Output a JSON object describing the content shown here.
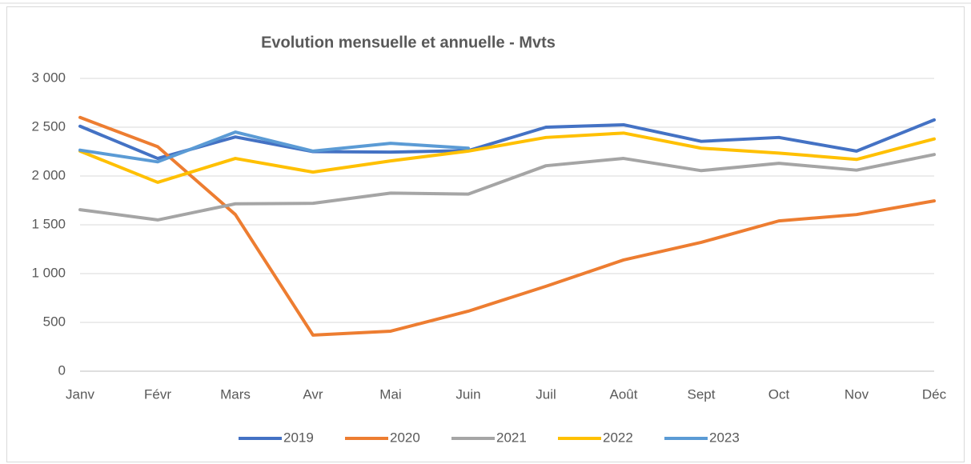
{
  "chart_data": {
    "type": "line",
    "title": "Evolution mensuelle et annuelle - Mvts",
    "categories": [
      "Janv",
      "Févr",
      "Mars",
      "Avr",
      "Mai",
      "Juin",
      "Juil",
      "Août",
      "Sept",
      "Oct",
      "Nov",
      "Déc"
    ],
    "series": [
      {
        "name": "2019",
        "color": "#4472c4",
        "values": [
          2510,
          2180,
          2400,
          2250,
          2245,
          2260,
          2500,
          2525,
          2355,
          2395,
          2255,
          2575
        ]
      },
      {
        "name": "2020",
        "color": "#ed7d31",
        "values": [
          2600,
          2300,
          1605,
          370,
          410,
          615,
          870,
          1140,
          1320,
          1540,
          1605,
          1745
        ]
      },
      {
        "name": "2021",
        "color": "#a5a5a5",
        "values": [
          1655,
          1550,
          1715,
          1720,
          1825,
          1815,
          2105,
          2180,
          2055,
          2130,
          2060,
          2220
        ]
      },
      {
        "name": "2022",
        "color": "#ffc000",
        "values": [
          2255,
          1935,
          2180,
          2040,
          2155,
          2255,
          2395,
          2440,
          2285,
          2235,
          2170,
          2380
        ]
      },
      {
        "name": "2023",
        "color": "#5b9bd5",
        "values": [
          2265,
          2145,
          2450,
          2255,
          2335,
          2285,
          null,
          null,
          null,
          null,
          null,
          null
        ]
      }
    ],
    "ylim": [
      0,
      3000
    ],
    "yticks": [
      0,
      500,
      {
        "value": 1000,
        "label": "1 000"
      },
      {
        "value": 1500,
        "label": "1 500"
      },
      {
        "value": 2000,
        "label": "2 000"
      },
      {
        "value": 2500,
        "label": "2 500"
      },
      {
        "value": 3000,
        "label": "3 000"
      }
    ],
    "grid": true,
    "legend": "bottom"
  }
}
